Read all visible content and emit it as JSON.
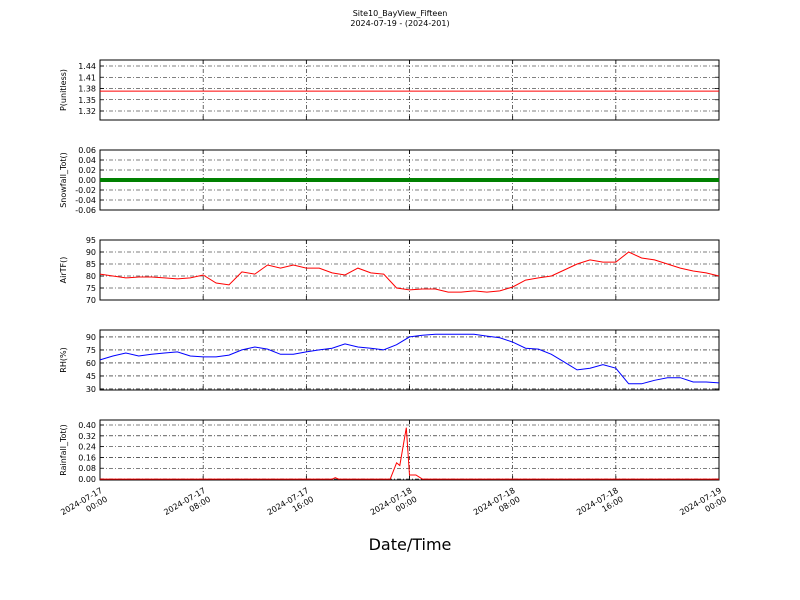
{
  "chart_data": [
    {
      "type": "line",
      "title": "Site10_BayView_Fifteen",
      "subtitle": "2024-07-19 - (2024-201)",
      "ylabel": "P(unitless)",
      "color": "#ff0000",
      "x": [
        "2024-07-17T00:00",
        "2024-07-19T00:00"
      ],
      "values": [
        1.373,
        1.373
      ],
      "ylim": [
        1.296,
        1.456
      ],
      "yticks": [
        1.32,
        1.35,
        1.38,
        1.41,
        1.44
      ],
      "grid": true
    },
    {
      "type": "line",
      "ylabel": "Snowfall_Tot()",
      "color": "#008000",
      "x": [
        "2024-07-17T00:00",
        "2024-07-19T00:00"
      ],
      "values": [
        0,
        0
      ],
      "ylim": [
        -0.06,
        0.06
      ],
      "yticks": [
        -0.06,
        -0.04,
        -0.02,
        {
          "value": 0,
          "label": "0.00"
        },
        0.02,
        0.04,
        0.06
      ],
      "grid": true
    },
    {
      "type": "line",
      "ylabel": "AirTF()",
      "color": "#ff0000",
      "x": [
        "2024-07-17T00:00",
        "2024-07-17T01:00",
        "2024-07-17T02:00",
        "2024-07-17T03:00",
        "2024-07-17T04:00",
        "2024-07-17T05:00",
        "2024-07-17T06:00",
        "2024-07-17T07:00",
        "2024-07-17T08:00",
        "2024-07-17T09:00",
        "2024-07-17T10:00",
        "2024-07-17T11:00",
        "2024-07-17T12:00",
        "2024-07-17T13:00",
        "2024-07-17T14:00",
        "2024-07-17T15:00",
        "2024-07-17T16:00",
        "2024-07-17T17:00",
        "2024-07-17T18:00",
        "2024-07-17T19:00",
        "2024-07-17T20:00",
        "2024-07-17T21:00",
        "2024-07-17T22:00",
        "2024-07-17T23:00",
        "2024-07-18T00:00",
        "2024-07-18T01:00",
        "2024-07-18T02:00",
        "2024-07-18T03:00",
        "2024-07-18T04:00",
        "2024-07-18T05:00",
        "2024-07-18T06:00",
        "2024-07-18T07:00",
        "2024-07-18T08:00",
        "2024-07-18T09:00",
        "2024-07-18T10:00",
        "2024-07-18T11:00",
        "2024-07-18T12:00",
        "2024-07-18T13:00",
        "2024-07-18T14:00",
        "2024-07-18T15:00",
        "2024-07-18T16:00",
        "2024-07-18T17:00",
        "2024-07-18T18:00",
        "2024-07-18T19:00",
        "2024-07-18T20:00",
        "2024-07-18T21:00",
        "2024-07-18T22:00",
        "2024-07-18T23:00",
        "2024-07-19T00:00"
      ],
      "values": [
        80.8,
        80,
        79.2,
        79.6,
        79.6,
        79.2,
        78.8,
        79.2,
        80.4,
        77.1,
        76.3,
        81.7,
        80.8,
        84.6,
        83.3,
        84.6,
        83.3,
        83.3,
        81.3,
        80.4,
        83.3,
        81.3,
        80.8,
        75,
        74.2,
        74.6,
        74.6,
        73.3,
        73.3,
        73.8,
        73.3,
        73.8,
        75.4,
        78.3,
        79.2,
        80,
        82.5,
        85,
        86.7,
        85.8,
        85.8,
        90,
        87.5,
        86.7,
        85,
        83.3,
        82.1,
        81.3,
        80
      ],
      "ylim": [
        70,
        95
      ],
      "yticks": [
        70,
        75,
        80,
        85,
        90,
        95
      ],
      "grid": true
    },
    {
      "type": "line",
      "ylabel": "RH(%)",
      "color": "#0000ff",
      "x": [
        "2024-07-17T00:00",
        "2024-07-17T01:00",
        "2024-07-17T02:00",
        "2024-07-17T03:00",
        "2024-07-17T04:00",
        "2024-07-17T05:00",
        "2024-07-17T06:00",
        "2024-07-17T07:00",
        "2024-07-17T08:00",
        "2024-07-17T09:00",
        "2024-07-17T10:00",
        "2024-07-17T11:00",
        "2024-07-17T12:00",
        "2024-07-17T13:00",
        "2024-07-17T14:00",
        "2024-07-17T15:00",
        "2024-07-17T16:00",
        "2024-07-17T17:00",
        "2024-07-17T18:00",
        "2024-07-17T19:00",
        "2024-07-17T20:00",
        "2024-07-17T21:00",
        "2024-07-17T22:00",
        "2024-07-17T23:00",
        "2024-07-18T00:00",
        "2024-07-18T01:00",
        "2024-07-18T02:00",
        "2024-07-18T03:00",
        "2024-07-18T04:00",
        "2024-07-18T05:00",
        "2024-07-18T06:00",
        "2024-07-18T07:00",
        "2024-07-18T08:00",
        "2024-07-18T09:00",
        "2024-07-18T10:00",
        "2024-07-18T11:00",
        "2024-07-18T12:00",
        "2024-07-18T13:00",
        "2024-07-18T14:00",
        "2024-07-18T15:00",
        "2024-07-18T16:00",
        "2024-07-18T17:00",
        "2024-07-18T18:00",
        "2024-07-18T19:00",
        "2024-07-18T20:00",
        "2024-07-18T21:00",
        "2024-07-18T22:00",
        "2024-07-18T23:00",
        "2024-07-19T00:00"
      ],
      "values": [
        63.5,
        68,
        71.5,
        68,
        70,
        71.5,
        72.7,
        68,
        67,
        67,
        69,
        75,
        78.4,
        76,
        70,
        70,
        72.7,
        75,
        77,
        82,
        78.4,
        77,
        75,
        81,
        90,
        92,
        93,
        93,
        93,
        93,
        91,
        89,
        84,
        77,
        76,
        70,
        61,
        52,
        54,
        58,
        54,
        36,
        36,
        40,
        43,
        43,
        38,
        38,
        37
      ],
      "ylim": [
        28.8,
        98
      ],
      "yticks": [
        30,
        45,
        60,
        75,
        90
      ],
      "grid": true
    },
    {
      "type": "line",
      "ylabel": "Rainfall_Tot()",
      "color": "#ff0000",
      "xlabel": "Date/Time",
      "x": [
        "2024-07-17T00:00",
        "2024-07-17T18:00",
        "2024-07-17T18:15",
        "2024-07-17T18:30",
        "2024-07-17T22:30",
        "2024-07-17T23:00",
        "2024-07-17T23:15",
        "2024-07-17T23:45",
        "2024-07-18T00:00",
        "2024-07-18T00:30",
        "2024-07-18T01:00",
        "2024-07-19T00:00"
      ],
      "values": [
        0,
        0,
        0.01,
        0,
        0,
        0.12,
        0.1,
        0.38,
        0.03,
        0.03,
        0,
        0
      ],
      "ylim": [
        -0.007,
        0.437
      ],
      "yticks": [
        {
          "value": 0,
          "label": "0.00"
        },
        0.08,
        0.16,
        0.24,
        0.32,
        {
          "value": 0.4,
          "label": "0.40"
        }
      ],
      "grid": true,
      "xlim": [
        "2024-07-17T00:00",
        "2024-07-19T00:00"
      ],
      "xticks": [
        {
          "value": "2024-07-17T00:00",
          "label": "2024-07-17\n00:00"
        },
        {
          "value": "2024-07-17T08:00",
          "label": "2024-07-17\n08:00"
        },
        {
          "value": "2024-07-17T16:00",
          "label": "2024-07-17\n16:00"
        },
        {
          "value": "2024-07-18T00:00",
          "label": "2024-07-18\n00:00"
        },
        {
          "value": "2024-07-18T08:00",
          "label": "2024-07-18\n08:00"
        },
        {
          "value": "2024-07-18T16:00",
          "label": "2024-07-18\n16:00"
        },
        {
          "value": "2024-07-19T00:00",
          "label": "2024-07-19\n00:00"
        }
      ]
    }
  ]
}
